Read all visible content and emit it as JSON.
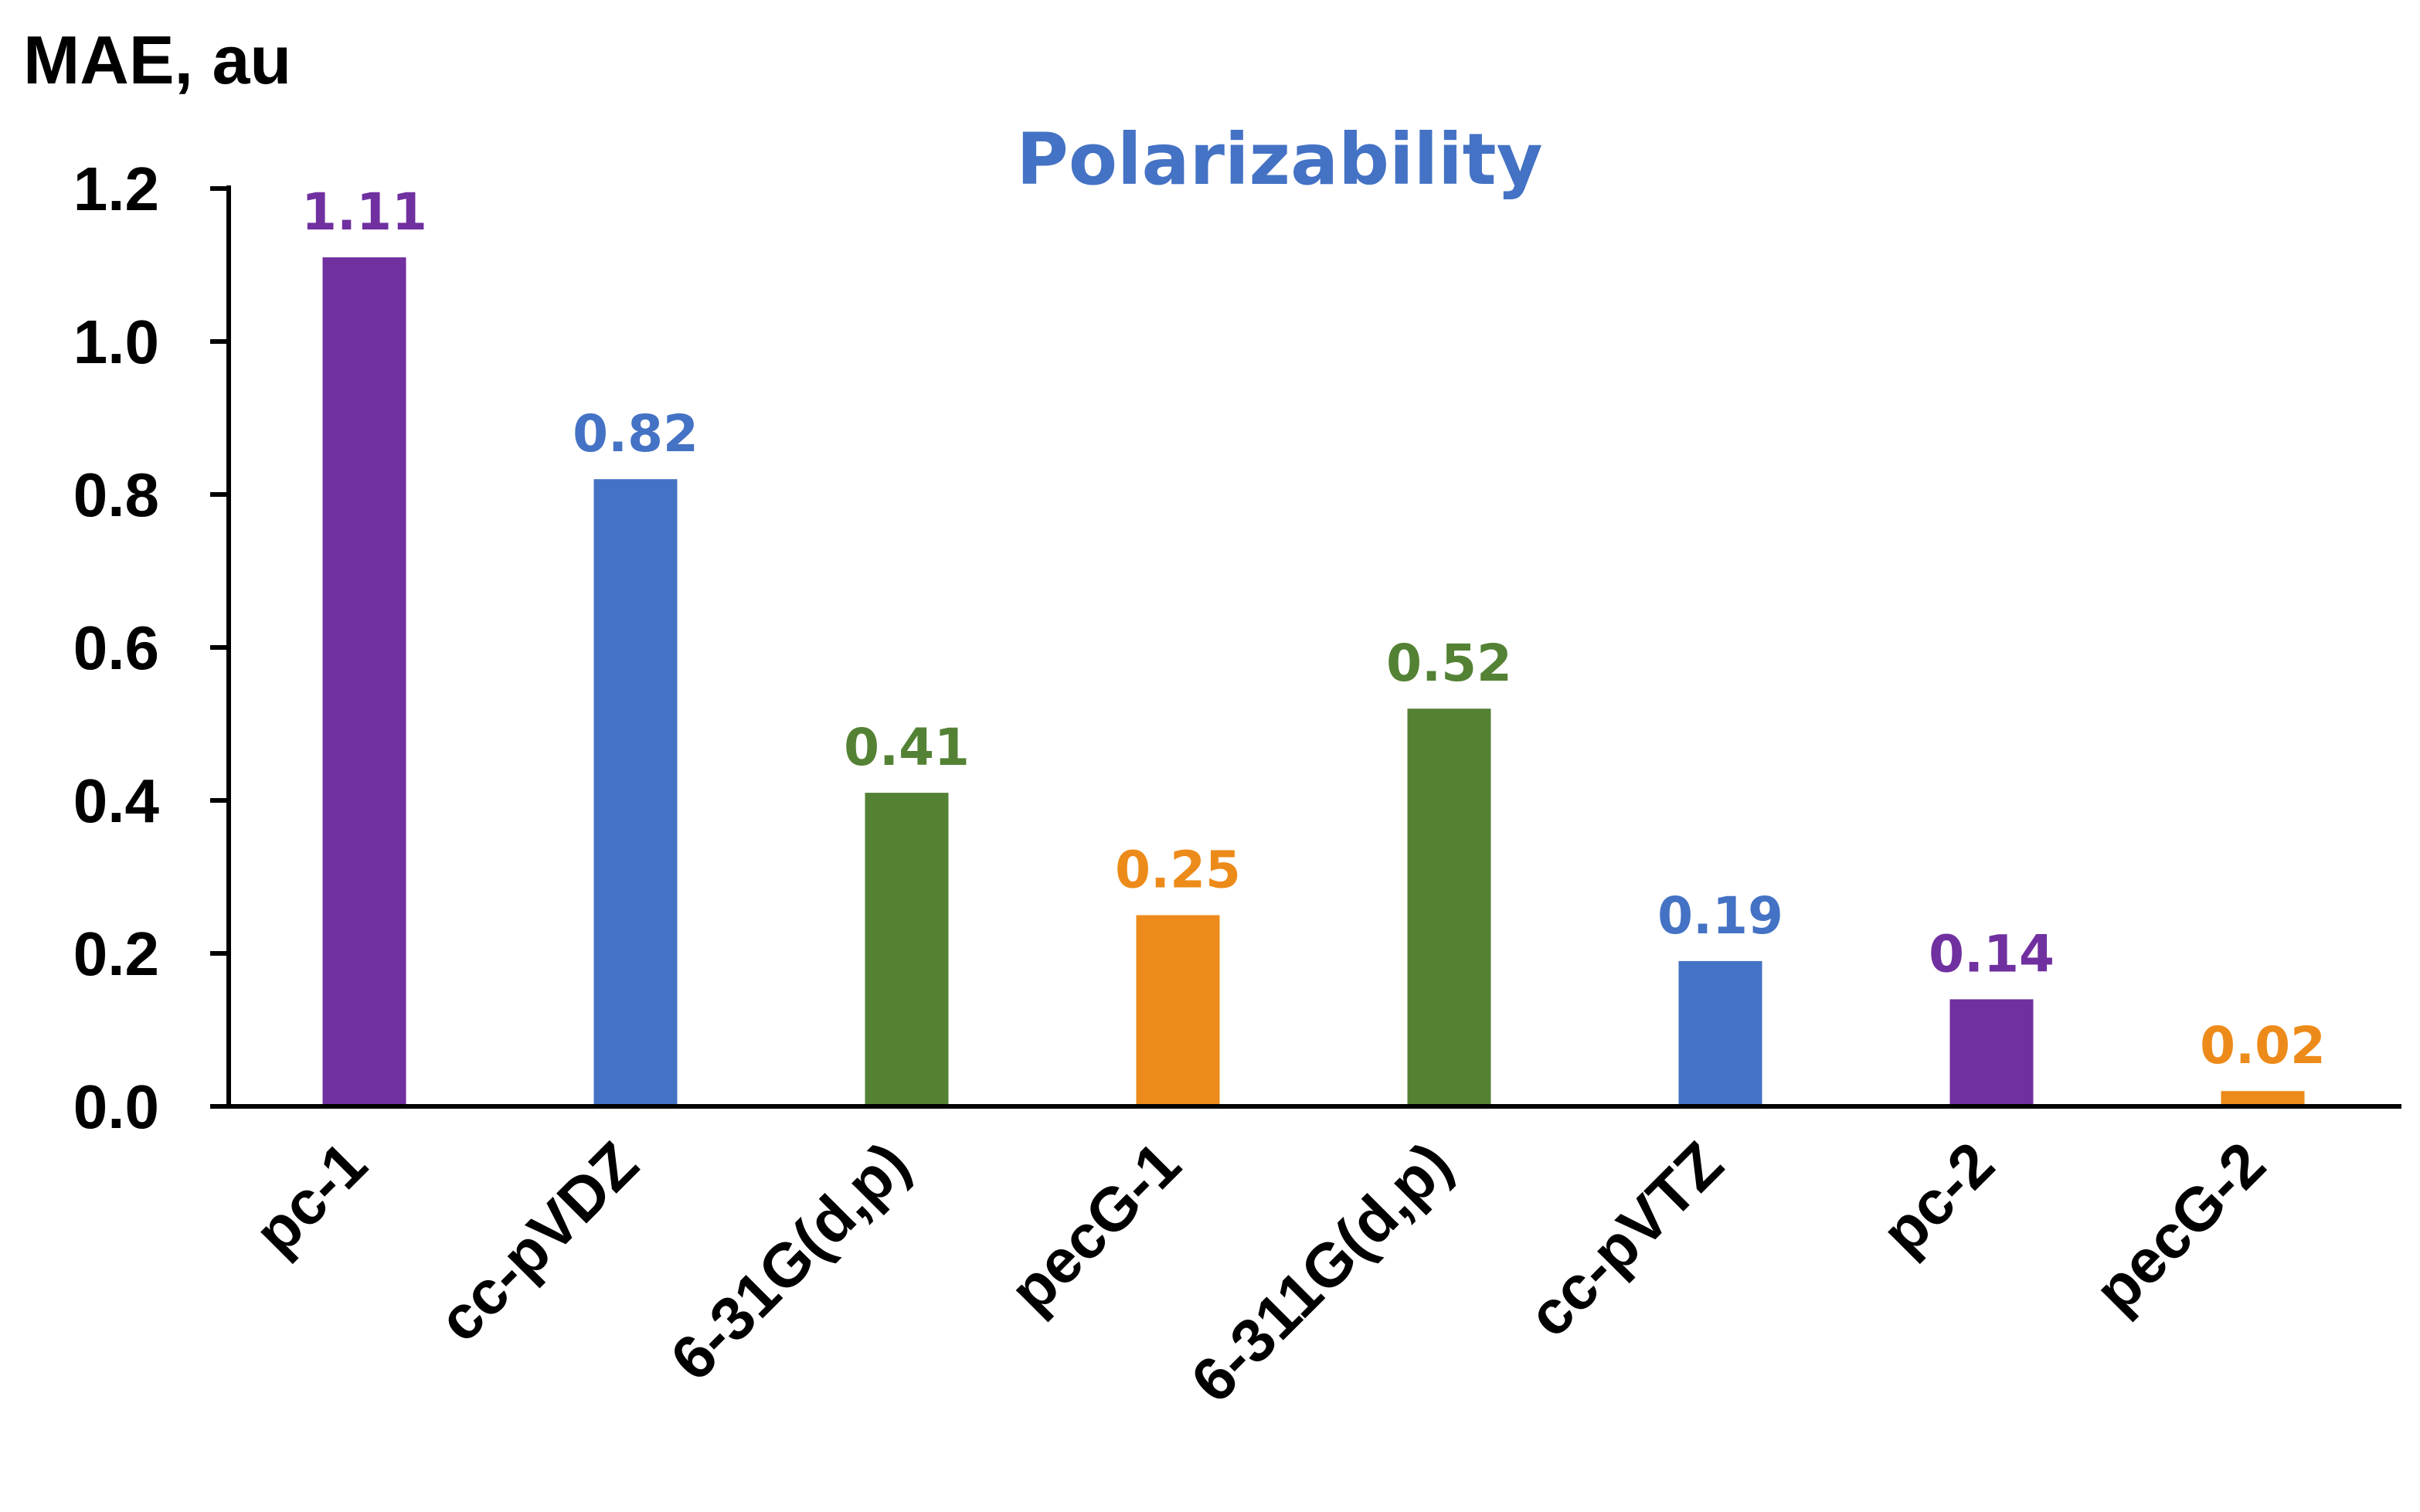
{
  "chart_data": {
    "type": "bar",
    "title": "Polarizability",
    "ylabel": "MAE, au",
    "xlabel": "",
    "ylim": [
      0,
      1.2
    ],
    "yticks": [
      "0.0",
      "0.2",
      "0.4",
      "0.6",
      "0.8",
      "1.0",
      "1.2"
    ],
    "grid": false,
    "categories": [
      "pc-1",
      "cc-pVDZ",
      "6-31G(d,p)",
      "pecG-1",
      "6-311G(d,p)",
      "cc-pVTZ",
      "pc-2",
      "pecG-2"
    ],
    "values": [
      1.11,
      0.82,
      0.41,
      0.25,
      0.52,
      0.19,
      0.14,
      0.02
    ],
    "value_labels": [
      "1.11",
      "0.82",
      "0.41",
      "0.25",
      "0.52",
      "0.19",
      "0.14",
      "0.02"
    ],
    "bar_colors": [
      "#7030A0",
      "#4472C4",
      "#548235",
      "#ED8B1A",
      "#548235",
      "#4472C4",
      "#7030A0",
      "#ED8B1A"
    ],
    "title_color": "#4472C4"
  }
}
